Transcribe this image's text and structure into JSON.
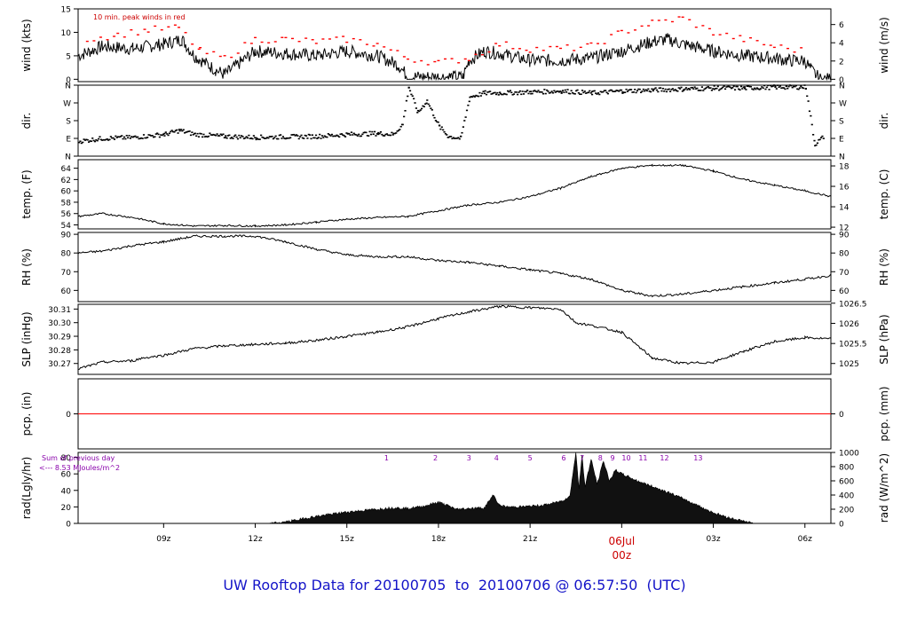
{
  "colors": {
    "frame": "#000000",
    "trace": "#000000",
    "peak": "#ff0000",
    "precip": "#ff0000",
    "annotation_red": "#cc0000",
    "solar": "#8800aa",
    "footer": "#1414c8"
  },
  "footer_text": "UW Rooftop Data for 20100705  to  20100706 @ 06:57:50  (UTC)",
  "x_axis": {
    "hour_range": [
      6.2,
      30.85
    ],
    "ticks": [
      {
        "hour": 9,
        "label": "09z"
      },
      {
        "hour": 12,
        "label": "12z"
      },
      {
        "hour": 15,
        "label": "15z"
      },
      {
        "hour": 18,
        "label": "18z"
      },
      {
        "hour": 21,
        "label": "21z"
      },
      {
        "hour": 24,
        "label": "00z"
      },
      {
        "hour": 27,
        "label": "03z"
      },
      {
        "hour": 30,
        "label": "06z"
      }
    ],
    "date_label": "06Jul",
    "date_hour_label": "00z"
  },
  "chart_data": [
    {
      "id": "wind",
      "type": "line",
      "ylabel_left": "wind (kts)",
      "ylabel_right": "wind (m/s)",
      "ylim": [
        -0.5,
        15
      ],
      "yticks_left": [
        0,
        5,
        10,
        15
      ],
      "yticks_right": [
        {
          "label": "0",
          "value": 0
        },
        {
          "label": "2",
          "value": 3.89
        },
        {
          "label": "4",
          "value": 7.78
        },
        {
          "label": "6",
          "value": 11.66
        }
      ],
      "annotation": "10 min. peak winds in red",
      "series": [
        {
          "role": "speed",
          "x": [
            6.2,
            7,
            8,
            9,
            9.6,
            10,
            10.7,
            11,
            12,
            13,
            14,
            15,
            16,
            16.7,
            17,
            17.5,
            18,
            18.4,
            18.8,
            19,
            19.5,
            20,
            21,
            22,
            23,
            24,
            25,
            25.5,
            26,
            27,
            28,
            29,
            29.5,
            30,
            30.2,
            30.5,
            30.85
          ],
          "y": [
            5,
            7,
            6.5,
            7.5,
            8.5,
            5,
            2,
            1,
            6,
            5.5,
            5,
            6,
            5,
            3,
            0.5,
            0.5,
            0.5,
            0.5,
            0.5,
            4,
            6,
            5.5,
            4,
            4,
            4.5,
            6,
            8,
            8.5,
            7.5,
            6,
            5,
            4.5,
            4,
            4,
            2,
            0,
            0
          ]
        },
        {
          "role": "peak",
          "x": [
            6.5,
            7.5,
            8.5,
            9.5,
            10.2,
            11,
            12,
            13,
            14,
            15,
            16,
            17,
            18,
            19,
            20,
            21,
            22,
            23,
            24,
            25,
            26,
            27,
            28,
            29,
            30
          ],
          "y": [
            8.5,
            9.5,
            10.5,
            11,
            6,
            4.5,
            8.5,
            8.5,
            8,
            8.5,
            7.5,
            4.5,
            3.5,
            4.5,
            7.5,
            6.5,
            6.5,
            7,
            10,
            12,
            13,
            10,
            8.5,
            7,
            6
          ]
        }
      ]
    },
    {
      "id": "direction",
      "type": "scatter",
      "ylabel_left": "dir.",
      "ylabel_right": "dir.",
      "ylim": [
        0,
        360
      ],
      "yticks_left": [
        {
          "label": "N",
          "value": 0
        },
        {
          "label": "E",
          "value": 90
        },
        {
          "label": "S",
          "value": 180
        },
        {
          "label": "W",
          "value": 270
        },
        {
          "label": "N",
          "value": 360
        }
      ],
      "yticks_right": [
        {
          "label": "N",
          "value": 0
        },
        {
          "label": "E",
          "value": 90
        },
        {
          "label": "S",
          "value": 180
        },
        {
          "label": "W",
          "value": 270
        },
        {
          "label": "N",
          "value": 360
        }
      ],
      "x": [
        6.2,
        7,
        8,
        9,
        9.5,
        10,
        11,
        12,
        13,
        14,
        15,
        16,
        16.5,
        16.8,
        17,
        17.3,
        17.6,
        18,
        18.3,
        18.7,
        19,
        19.5,
        20,
        21,
        22,
        23,
        24,
        25,
        26,
        27,
        28,
        29,
        30,
        30.3,
        30.6
      ],
      "y": [
        75,
        90,
        95,
        110,
        130,
        110,
        100,
        95,
        98,
        100,
        110,
        115,
        110,
        160,
        350,
        220,
        280,
        150,
        100,
        90,
        300,
        320,
        320,
        325,
        330,
        320,
        330,
        335,
        340,
        345,
        345,
        350,
        350,
        60,
        100
      ]
    },
    {
      "id": "temperature",
      "type": "line",
      "ylabel_left": "temp. (F)",
      "ylabel_right": "temp. (C)",
      "ylim": [
        53.3,
        65.5
      ],
      "yticks_left": [
        54,
        56,
        58,
        60,
        62,
        64
      ],
      "yticks_right": [
        {
          "label": "12",
          "value": 53.6
        },
        {
          "label": "14",
          "value": 57.2
        },
        {
          "label": "16",
          "value": 60.8
        },
        {
          "label": "18",
          "value": 64.4
        }
      ],
      "x": [
        6.2,
        7,
        8,
        9,
        10,
        11,
        12,
        13,
        14,
        15,
        16,
        17,
        18,
        19,
        20,
        21,
        22,
        23,
        24,
        25,
        26,
        27,
        28,
        29,
        30,
        30.85
      ],
      "y": [
        55.5,
        56,
        55.3,
        54.2,
        53.8,
        53.9,
        53.8,
        54,
        54.5,
        55,
        55.3,
        55.5,
        56.5,
        57.5,
        58,
        59,
        60.5,
        62.5,
        64,
        64.5,
        64.5,
        63.5,
        62,
        61,
        60,
        59
      ]
    },
    {
      "id": "humidity",
      "type": "line",
      "ylabel_left": "RH (%)",
      "ylabel_right": "RH (%)",
      "ylim": [
        54,
        91
      ],
      "yticks_left": [
        60,
        70,
        80,
        90
      ],
      "yticks_right": [
        {
          "label": "60",
          "value": 60
        },
        {
          "label": "70",
          "value": 70
        },
        {
          "label": "80",
          "value": 80
        },
        {
          "label": "90",
          "value": 90
        }
      ],
      "x": [
        6.2,
        7,
        8,
        9,
        10,
        11,
        12,
        13,
        14,
        15,
        16,
        17,
        18,
        19,
        20,
        21,
        22,
        23,
        24,
        25,
        26,
        27,
        28,
        29,
        30,
        30.85
      ],
      "y": [
        80,
        81,
        84,
        86,
        89,
        89,
        89,
        86,
        82,
        79,
        78,
        78,
        76,
        75,
        73,
        71,
        69,
        66,
        60,
        57,
        58,
        60,
        62,
        64,
        66,
        68
      ]
    },
    {
      "id": "pressure",
      "type": "line",
      "ylabel_left": "SLP (inHg)",
      "ylabel_right": "SLP (hPa)",
      "ylim": [
        30.262,
        30.3135
      ],
      "yticks_left": [
        {
          "label": "30.27",
          "value": 30.27
        },
        {
          "label": "30.28",
          "value": 30.28
        },
        {
          "label": "30.29",
          "value": 30.29
        },
        {
          "label": "30.30",
          "value": 30.3
        },
        {
          "label": "30.31",
          "value": 30.31
        }
      ],
      "yticks_right": [
        {
          "label": "1025",
          "value": 30.27
        },
        {
          "label": "1025.5",
          "value": 30.2847
        },
        {
          "label": "1026",
          "value": 30.2995
        },
        {
          "label": "1026.5",
          "value": 30.3143
        }
      ],
      "x": [
        6.2,
        7,
        8,
        8.3,
        9,
        10,
        11,
        12,
        13,
        14,
        15,
        16,
        17,
        18,
        19,
        20,
        21,
        22,
        22.5,
        23,
        24,
        25,
        26,
        27,
        28,
        29,
        30,
        30.85
      ],
      "y": [
        30.266,
        30.271,
        30.272,
        30.274,
        30.276,
        30.281,
        30.283,
        30.284,
        30.285,
        30.287,
        30.29,
        30.293,
        30.297,
        30.303,
        30.308,
        30.312,
        30.311,
        30.31,
        30.3,
        30.298,
        30.293,
        30.274,
        30.27,
        30.271,
        30.279,
        30.286,
        30.289,
        30.288
      ]
    },
    {
      "id": "precipitation",
      "type": "line",
      "ylabel_left": "pcp. (in)",
      "ylabel_right": "pcp. (mm)",
      "ylim": [
        -0.01,
        0.01
      ],
      "yticks_left": [
        {
          "label": "0",
          "value": 0
        }
      ],
      "yticks_right": [
        {
          "label": "0",
          "value": 0
        }
      ],
      "x": [
        6.2,
        30.85
      ],
      "y": [
        0,
        0
      ]
    },
    {
      "id": "radiation",
      "type": "area",
      "ylabel_left": "rad(Lgly/hr)",
      "ylabel_right": "rad (W/m^2)",
      "ylim": [
        0,
        1000
      ],
      "yticks_left": [
        {
          "label": "0",
          "value": 0
        },
        {
          "label": "20",
          "value": 232.6
        },
        {
          "label": "40",
          "value": 465.2
        },
        {
          "label": "60",
          "value": 697.8
        },
        {
          "label": "80",
          "value": 930.4
        }
      ],
      "yticks_right": [
        {
          "label": "0",
          "value": 0
        },
        {
          "label": "200",
          "value": 200
        },
        {
          "label": "400",
          "value": 400
        },
        {
          "label": "600",
          "value": 600
        },
        {
          "label": "800",
          "value": 800
        },
        {
          "label": "1000",
          "value": 1000
        }
      ],
      "annotation_line1": "Sum of previous day",
      "annotation_line2": "<--- 8.53 MJoules/m^2",
      "hour_markers": [
        {
          "hour": 16.3,
          "label": "1"
        },
        {
          "hour": 17.9,
          "label": "2"
        },
        {
          "hour": 19.0,
          "label": "3"
        },
        {
          "hour": 19.9,
          "label": "4"
        },
        {
          "hour": 21.0,
          "label": "5"
        },
        {
          "hour": 22.1,
          "label": "6"
        },
        {
          "hour": 22.7,
          "label": "7"
        },
        {
          "hour": 23.3,
          "label": "8"
        },
        {
          "hour": 23.7,
          "label": "9"
        },
        {
          "hour": 24.15,
          "label": "10"
        },
        {
          "hour": 24.7,
          "label": "11"
        },
        {
          "hour": 25.4,
          "label": "12"
        },
        {
          "hour": 26.5,
          "label": "13"
        }
      ],
      "x": [
        12.5,
        13,
        13.5,
        14,
        14.5,
        15,
        15.5,
        16,
        16.5,
        17,
        17.5,
        18,
        18.3,
        18.6,
        19,
        19.5,
        19.8,
        20,
        20.3,
        21,
        21.5,
        22,
        22.3,
        22.5,
        22.6,
        22.7,
        22.8,
        23,
        23.2,
        23.4,
        23.6,
        23.8,
        24,
        24.5,
        25,
        25.5,
        26,
        26.5,
        27,
        27.5,
        28,
        28.3
      ],
      "y": [
        0,
        20,
        60,
        100,
        130,
        160,
        180,
        200,
        220,
        210,
        240,
        300,
        250,
        200,
        210,
        220,
        400,
        250,
        230,
        240,
        260,
        310,
        380,
        1000,
        500,
        950,
        520,
        900,
        550,
        880,
        600,
        750,
        700,
        600,
        520,
        440,
        350,
        250,
        150,
        80,
        30,
        0
      ]
    }
  ]
}
